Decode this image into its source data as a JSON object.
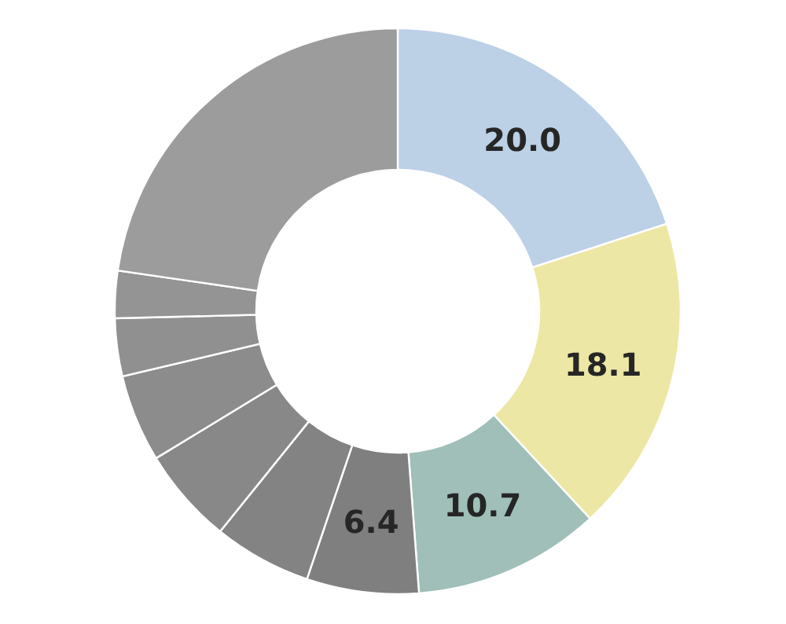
{
  "chart_data": {
    "type": "donut",
    "categories": [
      null,
      null,
      null,
      null,
      null,
      null,
      null,
      null,
      null,
      null
    ],
    "values": [
      20.0,
      18.1,
      10.7,
      6.4,
      5.6,
      5.5,
      5.0,
      3.3,
      2.7,
      22.7
    ],
    "colors": [
      "#bcd0e6",
      "#ede7a5",
      "#9fbfb8",
      "#7f7f7f",
      "#838383",
      "#888888",
      "#8c8c8c",
      "#909090",
      "#949494",
      "#9c9c9c"
    ],
    "value_labels": [
      "20.0",
      "18.1",
      "10.7",
      "6.4",
      null,
      null,
      null,
      null,
      null,
      null
    ]
  }
}
